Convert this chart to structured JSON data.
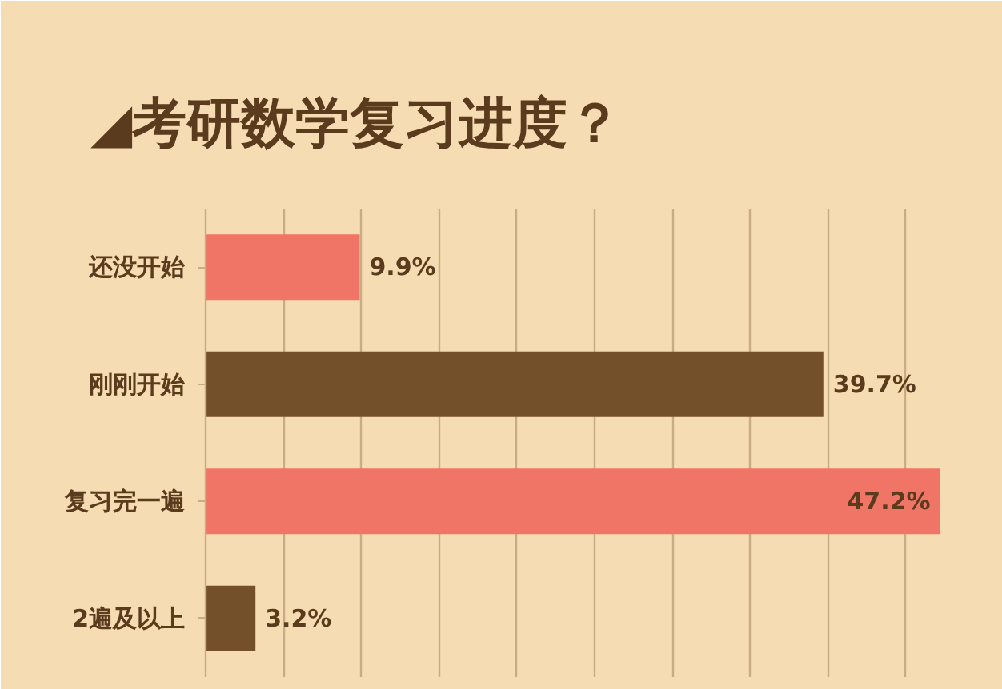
{
  "chart_data": {
    "type": "bar",
    "orientation": "horizontal",
    "title": "◢考研数学复习进度？",
    "categories": [
      "还没开始",
      "刚刚开始",
      "复习完一遍",
      "2遍及以上"
    ],
    "values": [
      9.9,
      39.7,
      47.2,
      3.2
    ],
    "value_labels": [
      "9.9%",
      "39.7%",
      "47.2%",
      "3.2%"
    ],
    "colors": [
      "#f07566",
      "#74502a",
      "#f07566",
      "#74502a"
    ],
    "xlim": [
      0,
      50
    ],
    "xticks": [
      {
        "value": 0,
        "label": null
      },
      {
        "value": 5,
        "label": null
      },
      {
        "value": 10,
        "label": null
      },
      {
        "value": 15,
        "label": null
      },
      {
        "value": 20,
        "label": null
      },
      {
        "value": 25,
        "label": null
      },
      {
        "value": 30,
        "label": null
      },
      {
        "value": 35,
        "label": null
      },
      {
        "value": 40,
        "label": null
      },
      {
        "value": 45,
        "label": null
      }
    ],
    "grid": "x",
    "tick_labels": "y"
  }
}
